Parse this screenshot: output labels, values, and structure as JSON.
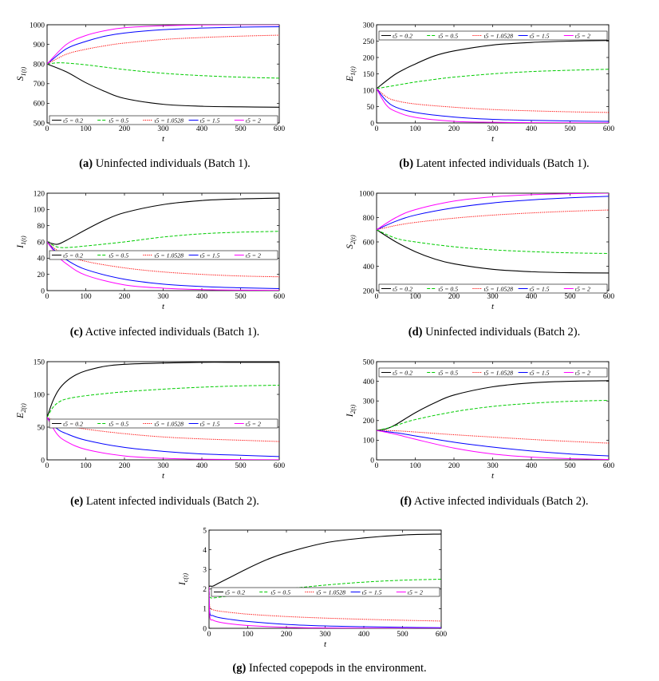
{
  "legend_entries": [
    "ι5 = 0.2",
    "ι5 = 0.5",
    "ι5 = 1.0528",
    "ι5 = 1.5",
    "ι5 = 2"
  ],
  "series_colors": [
    "#000000",
    "#00cc00",
    "#ff0000",
    "#0000ff",
    "#ff00ff"
  ],
  "chart_data": [
    {
      "id": "a",
      "type": "line",
      "label": "(a)",
      "caption": "Uninfected individuals (Batch 1).",
      "ylabel": "S1(t)",
      "xlabel": "t",
      "xlim": [
        0,
        600
      ],
      "ylim": [
        500,
        1000
      ],
      "xticks": [
        0,
        100,
        200,
        300,
        400,
        500,
        600
      ],
      "yticks": [
        500,
        600,
        700,
        800,
        900,
        1000
      ],
      "legend_position": "bottom",
      "series": [
        {
          "name": "ι5 = 0.2",
          "x": [
            0,
            50,
            100,
            150,
            200,
            300,
            400,
            500,
            600
          ],
          "values": [
            800,
            760,
            705,
            660,
            625,
            595,
            585,
            582,
            580
          ]
        },
        {
          "name": "ι5 = 0.5",
          "x": [
            0,
            25,
            50,
            100,
            200,
            300,
            400,
            500,
            600
          ],
          "values": [
            800,
            806,
            805,
            796,
            772,
            753,
            741,
            733,
            728
          ]
        },
        {
          "name": "ι5 = 1.0528",
          "x": [
            0,
            50,
            100,
            150,
            200,
            300,
            400,
            500,
            600
          ],
          "values": [
            800,
            850,
            875,
            893,
            907,
            925,
            935,
            942,
            947
          ]
        },
        {
          "name": "ι5 = 1.5",
          "x": [
            0,
            50,
            100,
            150,
            200,
            300,
            400,
            500,
            600
          ],
          "values": [
            800,
            878,
            915,
            942,
            958,
            975,
            983,
            988,
            990
          ]
        },
        {
          "name": "ι5 = 2",
          "x": [
            0,
            50,
            100,
            150,
            200,
            300,
            400,
            500,
            600
          ],
          "values": [
            800,
            900,
            945,
            970,
            985,
            995,
            999,
            1000,
            1000
          ]
        }
      ]
    },
    {
      "id": "b",
      "type": "line",
      "label": "(b)",
      "caption": "Latent infected individuals (Batch 1).",
      "ylabel": "E1(t)",
      "xlabel": "t",
      "xlim": [
        0,
        600
      ],
      "ylim": [
        0,
        300
      ],
      "xticks": [
        0,
        100,
        200,
        300,
        400,
        500,
        600
      ],
      "yticks": [
        0,
        50,
        100,
        150,
        200,
        250,
        300
      ],
      "legend_position": "top",
      "series": [
        {
          "name": "ι5 = 0.2",
          "x": [
            0,
            50,
            100,
            150,
            200,
            300,
            400,
            500,
            600
          ],
          "values": [
            105,
            150,
            180,
            205,
            220,
            238,
            246,
            250,
            252
          ]
        },
        {
          "name": "ι5 = 0.5",
          "x": [
            0,
            50,
            100,
            150,
            200,
            300,
            400,
            500,
            600
          ],
          "values": [
            105,
            115,
            125,
            133,
            140,
            150,
            157,
            161,
            164
          ]
        },
        {
          "name": "ι5 = 1.0528",
          "x": [
            0,
            25,
            50,
            100,
            200,
            300,
            400,
            500,
            600
          ],
          "values": [
            105,
            80,
            68,
            58,
            48,
            41,
            37,
            34,
            32
          ]
        },
        {
          "name": "ι5 = 1.5",
          "x": [
            0,
            25,
            50,
            100,
            200,
            300,
            400,
            500,
            600
          ],
          "values": [
            105,
            68,
            48,
            32,
            18,
            11,
            8,
            6,
            5
          ]
        },
        {
          "name": "ι5 = 2",
          "x": [
            0,
            25,
            50,
            100,
            200,
            300,
            400,
            500,
            600
          ],
          "values": [
            105,
            55,
            35,
            17,
            5,
            2,
            1,
            0.5,
            0.3
          ]
        }
      ]
    },
    {
      "id": "c",
      "type": "line",
      "label": "(c)",
      "caption": "Active infected individuals (Batch 1).",
      "ylabel": "I1(t)",
      "xlabel": "t",
      "xlim": [
        0,
        600
      ],
      "ylim": [
        0,
        120
      ],
      "xticks": [
        0,
        100,
        200,
        300,
        400,
        500,
        600
      ],
      "yticks": [
        0,
        20,
        40,
        60,
        80,
        100,
        120
      ],
      "legend_position": "middle-right",
      "series": [
        {
          "name": "ι5 = 0.2",
          "x": [
            0,
            25,
            50,
            100,
            150,
            200,
            300,
            400,
            500,
            600
          ],
          "values": [
            60,
            57,
            62,
            75,
            87,
            96,
            106,
            111,
            113,
            114
          ]
        },
        {
          "name": "ι5 = 0.5",
          "x": [
            0,
            25,
            50,
            100,
            200,
            300,
            400,
            500,
            600
          ],
          "values": [
            60,
            54,
            53,
            55,
            60,
            66,
            70,
            72,
            73
          ]
        },
        {
          "name": "ι5 = 1.0528",
          "x": [
            0,
            25,
            50,
            100,
            200,
            300,
            400,
            500,
            600
          ],
          "values": [
            60,
            50,
            44,
            36,
            28,
            23,
            20,
            18,
            17
          ]
        },
        {
          "name": "ι5 = 1.5",
          "x": [
            0,
            25,
            50,
            100,
            200,
            300,
            400,
            500,
            600
          ],
          "values": [
            60,
            47,
            38,
            26,
            14,
            8,
            5,
            3.5,
            2.5
          ]
        },
        {
          "name": "ι5 = 2",
          "x": [
            0,
            25,
            50,
            100,
            200,
            300,
            400,
            500,
            600
          ],
          "values": [
            60,
            44,
            33,
            19,
            7,
            3,
            1.3,
            0.6,
            0.3
          ]
        }
      ]
    },
    {
      "id": "d",
      "type": "line",
      "label": "(d)",
      "caption": "Uninfected individuals (Batch 2).",
      "ylabel": "S2(t)",
      "xlabel": "t",
      "xlim": [
        0,
        600
      ],
      "ylim": [
        200,
        1000
      ],
      "xticks": [
        0,
        100,
        200,
        300,
        400,
        500,
        600
      ],
      "yticks": [
        200,
        400,
        600,
        800,
        1000
      ],
      "legend_position": "bottom",
      "series": [
        {
          "name": "ι5 = 0.2",
          "x": [
            0,
            50,
            100,
            150,
            200,
            300,
            400,
            500,
            600
          ],
          "values": [
            700,
            600,
            520,
            460,
            420,
            375,
            355,
            347,
            345
          ]
        },
        {
          "name": "ι5 = 0.5",
          "x": [
            0,
            50,
            100,
            200,
            300,
            400,
            500,
            600
          ],
          "values": [
            700,
            630,
            600,
            560,
            535,
            520,
            510,
            505
          ]
        },
        {
          "name": "ι5 = 1.0528",
          "x": [
            0,
            50,
            100,
            200,
            300,
            400,
            500,
            600
          ],
          "values": [
            700,
            735,
            760,
            795,
            820,
            838,
            852,
            862
          ]
        },
        {
          "name": "ι5 = 1.5",
          "x": [
            0,
            50,
            100,
            200,
            300,
            400,
            500,
            600
          ],
          "values": [
            700,
            770,
            820,
            880,
            920,
            945,
            962,
            975
          ]
        },
        {
          "name": "ι5 = 2",
          "x": [
            0,
            50,
            100,
            200,
            300,
            400,
            500,
            600
          ],
          "values": [
            700,
            800,
            865,
            935,
            970,
            988,
            996,
            1000
          ]
        }
      ]
    },
    {
      "id": "e",
      "type": "line",
      "label": "(e)",
      "caption": "Latent infected individuals (Batch 2).",
      "ylabel": "E2(t)",
      "xlabel": "t",
      "xlim": [
        0,
        600
      ],
      "ylim": [
        0,
        150
      ],
      "xticks": [
        0,
        100,
        200,
        300,
        400,
        500,
        600
      ],
      "yticks": [
        0,
        50,
        100,
        150
      ],
      "legend_position": "middle-right",
      "series": [
        {
          "name": "ι5 = 0.2",
          "x": [
            0,
            15,
            30,
            50,
            75,
            100,
            150,
            200,
            300,
            400,
            500,
            600
          ],
          "values": [
            65,
            90,
            107,
            120,
            130,
            136,
            143,
            146,
            148,
            149,
            149,
            149
          ]
        },
        {
          "name": "ι5 = 0.5",
          "x": [
            0,
            15,
            30,
            50,
            100,
            200,
            300,
            400,
            500,
            600
          ],
          "values": [
            65,
            80,
            88,
            93,
            98,
            104,
            108,
            111,
            113,
            114
          ]
        },
        {
          "name": "ι5 = 1.0528",
          "x": [
            0,
            25,
            50,
            100,
            200,
            300,
            400,
            500,
            600
          ],
          "values": [
            65,
            58,
            53,
            47,
            40,
            35,
            32,
            30,
            28
          ]
        },
        {
          "name": "ι5 = 1.5",
          "x": [
            0,
            25,
            50,
            100,
            200,
            300,
            400,
            500,
            600
          ],
          "values": [
            65,
            48,
            40,
            30,
            19,
            13,
            9,
            7,
            5
          ]
        },
        {
          "name": "ι5 = 2",
          "x": [
            0,
            25,
            50,
            100,
            200,
            300,
            400,
            500,
            600
          ],
          "values": [
            65,
            40,
            28,
            16,
            6,
            2.5,
            1,
            0.5,
            0.2
          ]
        }
      ]
    },
    {
      "id": "f",
      "type": "line",
      "label": "(f)",
      "caption": "Active infected individuals (Batch 2).",
      "ylabel": "I2(t)",
      "xlabel": "t",
      "xlim": [
        0,
        600
      ],
      "ylim": [
        0,
        500
      ],
      "xticks": [
        0,
        100,
        200,
        300,
        400,
        500,
        600
      ],
      "yticks": [
        0,
        100,
        200,
        300,
        400,
        500
      ],
      "legend_position": "top",
      "series": [
        {
          "name": "ι5 = 0.2",
          "x": [
            0,
            25,
            50,
            100,
            150,
            200,
            300,
            400,
            500,
            600
          ],
          "values": [
            150,
            158,
            180,
            240,
            290,
            330,
            372,
            392,
            400,
            403
          ]
        },
        {
          "name": "ι5 = 0.5",
          "x": [
            0,
            25,
            50,
            100,
            200,
            300,
            400,
            500,
            600
          ],
          "values": [
            150,
            160,
            175,
            205,
            245,
            272,
            288,
            298,
            303
          ]
        },
        {
          "name": "ι5 = 1.0528",
          "x": [
            0,
            50,
            100,
            200,
            300,
            400,
            500,
            600
          ],
          "values": [
            150,
            148,
            142,
            128,
            116,
            104,
            94,
            85
          ]
        },
        {
          "name": "ι5 = 1.5",
          "x": [
            0,
            50,
            100,
            200,
            300,
            400,
            500,
            600
          ],
          "values": [
            150,
            138,
            122,
            90,
            65,
            45,
            30,
            20
          ]
        },
        {
          "name": "ι5 = 2",
          "x": [
            0,
            50,
            100,
            200,
            300,
            400,
            500,
            600
          ],
          "values": [
            150,
            130,
            105,
            60,
            30,
            14,
            6,
            2
          ]
        }
      ]
    },
    {
      "id": "g",
      "type": "line",
      "label": "(g)",
      "caption": "Infected copepods in the environment.",
      "ylabel": "Ic(t)",
      "xlabel": "t",
      "xlim": [
        0,
        600
      ],
      "ylim": [
        0,
        5
      ],
      "xticks": [
        0,
        100,
        200,
        300,
        400,
        500,
        600
      ],
      "yticks": [
        0,
        1,
        2,
        3,
        4,
        5
      ],
      "legend_position": "middle-right",
      "series": [
        {
          "name": "ι5 = 0.2",
          "x": [
            0,
            2,
            10,
            25,
            50,
            100,
            150,
            200,
            300,
            400,
            500,
            600
          ],
          "values": [
            2.1,
            2.15,
            2.15,
            2.3,
            2.55,
            3.05,
            3.5,
            3.85,
            4.35,
            4.6,
            4.75,
            4.8
          ]
        },
        {
          "name": "ι5 = 0.5",
          "x": [
            0,
            2,
            10,
            25,
            50,
            100,
            200,
            300,
            400,
            500,
            600
          ],
          "values": [
            2.1,
            1.6,
            1.55,
            1.58,
            1.65,
            1.78,
            2.0,
            2.2,
            2.35,
            2.45,
            2.5
          ]
        },
        {
          "name": "ι5 = 1.0528",
          "x": [
            0,
            2,
            10,
            25,
            50,
            100,
            200,
            300,
            400,
            500,
            600
          ],
          "values": [
            2.1,
            1.1,
            0.95,
            0.88,
            0.82,
            0.72,
            0.6,
            0.52,
            0.46,
            0.41,
            0.37
          ]
        },
        {
          "name": "ι5 = 1.5",
          "x": [
            0,
            2,
            10,
            25,
            50,
            100,
            200,
            300,
            400,
            500,
            600
          ],
          "values": [
            2.1,
            0.8,
            0.65,
            0.55,
            0.47,
            0.35,
            0.2,
            0.12,
            0.08,
            0.05,
            0.03
          ]
        },
        {
          "name": "ι5 = 2",
          "x": [
            0,
            2,
            10,
            25,
            50,
            100,
            200,
            300,
            400,
            500,
            600
          ],
          "values": [
            2.1,
            0.6,
            0.42,
            0.32,
            0.24,
            0.14,
            0.05,
            0.02,
            0.01,
            0.005,
            0.002
          ]
        }
      ]
    }
  ]
}
